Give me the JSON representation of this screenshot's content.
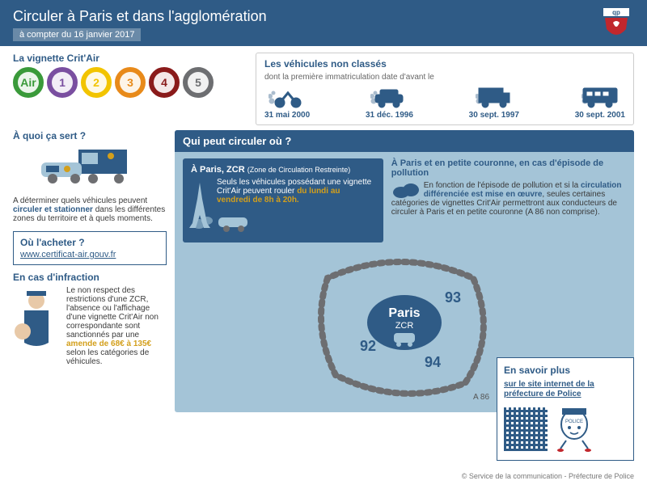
{
  "banner": {
    "title": "Circuler à Paris et dans l'agglomération",
    "subtitle": "à compter du 16 janvier 2017",
    "bg_color": "#2f5b86"
  },
  "stickers": {
    "heading": "La vignette Crit'Air",
    "items": [
      {
        "label": "Air",
        "color": "#3a9a3a"
      },
      {
        "label": "1",
        "color": "#7a4fa0"
      },
      {
        "label": "2",
        "color": "#f2c400"
      },
      {
        "label": "3",
        "color": "#e88a1a"
      },
      {
        "label": "4",
        "color": "#8a1b1b"
      },
      {
        "label": "5",
        "color": "#6d6e71"
      }
    ]
  },
  "nonclasse": {
    "heading": "Les véhicules non classés",
    "sub": "dont la première immatriculation date d'avant le",
    "vehicles": [
      {
        "date": "31 mai 2000",
        "kind": "moto"
      },
      {
        "date": "31 déc. 1996",
        "kind": "car"
      },
      {
        "date": "30 sept. 1997",
        "kind": "van"
      },
      {
        "date": "30 sept. 2001",
        "kind": "bus"
      }
    ]
  },
  "purpose": {
    "heading": "À quoi ça sert ?",
    "text_pre": "A déterminer quels véhicules peuvent ",
    "text_strong": "circuler et stationner",
    "text_post": " dans les différentes zones du territoire et à quels moments."
  },
  "buy": {
    "heading": "Où l'acheter ?",
    "link": "www.certificat-air.gouv.fr"
  },
  "infraction": {
    "heading": "En cas d'infraction",
    "text_pre": "Le non respect des restrictions d'une ZCR, l'absence ou l'affichage d'une vignette Crit'Air non correspondante sont sanctionnés par une ",
    "text_strong": "amende de 68€ à 135€",
    "text_post": " selon les catégories de véhicules."
  },
  "circulate": {
    "heading": "Qui peut circuler où ?",
    "paris": {
      "title_a": "À Paris, ",
      "title_b": "ZCR ",
      "title_c": "(Zone de Circulation Restreinte)",
      "text_pre": "Seuls les véhicules possédant une vignette Crit'Air peuvent rouler",
      "text_strong": " du lundi au vendredi de 8h à 20h."
    },
    "couronne": {
      "title": "À Paris et en petite couronne, en cas d'épisode de pollution",
      "text_pre": "En fonction de l'épisode de pollution et si la ",
      "text_strong": "circulation différenciée est mise en œuvre",
      "text_post": ", seules certaines catégories de vignettes Crit'Air permettront aux conducteurs de circuler à Paris et en petite couronne (A 86 non comprise)."
    }
  },
  "map": {
    "center": "Paris",
    "center_sub": "ZCR",
    "zones": [
      "92",
      "93",
      "94"
    ],
    "road_label": "A 86",
    "zone_fill": "#a4c4d7",
    "center_fill": "#2f5b86",
    "road_color": "#6d6e71"
  },
  "savoir": {
    "heading": "En savoir plus",
    "link": "sur le site internet de la préfecture de Police"
  },
  "footer": "© Service de la communication - Préfecture de Police"
}
